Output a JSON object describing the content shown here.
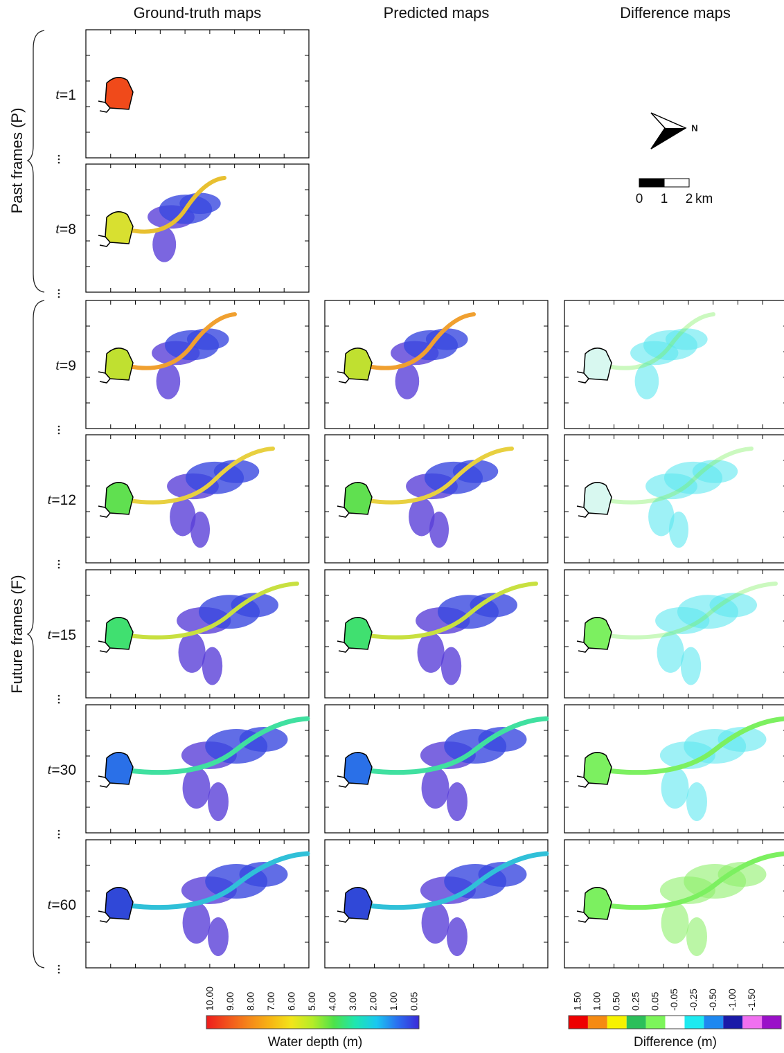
{
  "column_headers": [
    "Ground-truth maps",
    "Predicted maps",
    "Difference maps"
  ],
  "groups": [
    {
      "label": "Past frames (P)"
    },
    {
      "label": "Future frames (F)"
    }
  ],
  "rows": [
    {
      "variable": "t",
      "index": "=1"
    },
    {
      "variable": "t",
      "index": "=8"
    },
    {
      "variable": "t",
      "index": "=9"
    },
    {
      "variable": "t",
      "index": "=12"
    },
    {
      "variable": "t",
      "index": "=15"
    },
    {
      "variable": "t",
      "index": "=30"
    },
    {
      "variable": "t",
      "index": "=60"
    }
  ],
  "north_label": "N",
  "scale_bar": {
    "labels": [
      "0",
      "1",
      "2"
    ],
    "unit": "km"
  },
  "depth_legend": {
    "title": "Water depth (m)",
    "ticks": [
      "10.00",
      "9.00",
      "8.00",
      "7.00",
      "6.00",
      "5.00",
      "4.00",
      "3.00",
      "2.00",
      "1.00",
      "0.05"
    ],
    "colors": [
      "#ee1c1c",
      "#f2531c",
      "#f5871a",
      "#f7b514",
      "#f2e51a",
      "#b4ec28",
      "#4de24a",
      "#1ee6b0",
      "#1ac8f0",
      "#2a6ef0",
      "#3a2ad8"
    ]
  },
  "difference_legend": {
    "title": "Difference (m)",
    "ticks": [
      "1.50",
      "1.00",
      "0.50",
      "0.25",
      "0.05",
      "-0.05",
      "-0.25",
      "-0.50",
      "-1.00",
      "-1.50"
    ],
    "colors": [
      "#ee0000",
      "#f58a12",
      "#f7f200",
      "#2cbf5a",
      "#7cf55a",
      "#ffffff",
      "#1eeaf0",
      "#1e88f0",
      "#1a1aa8",
      "#f070f0",
      "#9a10c8"
    ]
  }
}
